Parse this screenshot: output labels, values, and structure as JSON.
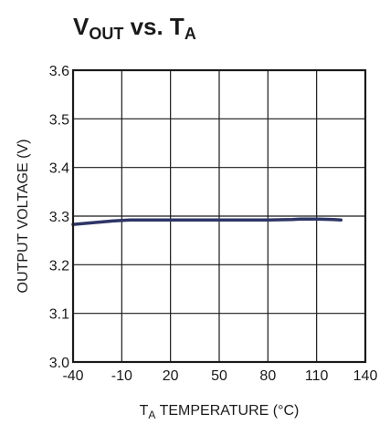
{
  "chart_data": {
    "type": "line",
    "title_parts": {
      "v": "V",
      "out": "OUT",
      "vs": " vs. T",
      "a": "A"
    },
    "ylabel": "OUTPUT VOLTAGE (V)",
    "xlabel_parts": {
      "t": "T",
      "a": "A",
      "rest": " TEMPERATURE (°C)"
    },
    "xlim": [
      -40,
      140
    ],
    "ylim": [
      3.0,
      3.6
    ],
    "x_ticks": [
      -40,
      -10,
      20,
      50,
      80,
      110,
      140
    ],
    "y_ticks": [
      "3.0",
      "3.1",
      "3.2",
      "3.3",
      "3.4",
      "3.5",
      "3.6"
    ],
    "grid": true,
    "series": [
      {
        "color": "#2e3566",
        "x": [
          -40,
          -15,
          -5,
          20,
          50,
          80,
          95,
          100,
          110,
          120,
          125
        ],
        "y": [
          3.283,
          3.29,
          3.292,
          3.292,
          3.292,
          3.292,
          3.293,
          3.294,
          3.294,
          3.293,
          3.292
        ]
      }
    ]
  }
}
